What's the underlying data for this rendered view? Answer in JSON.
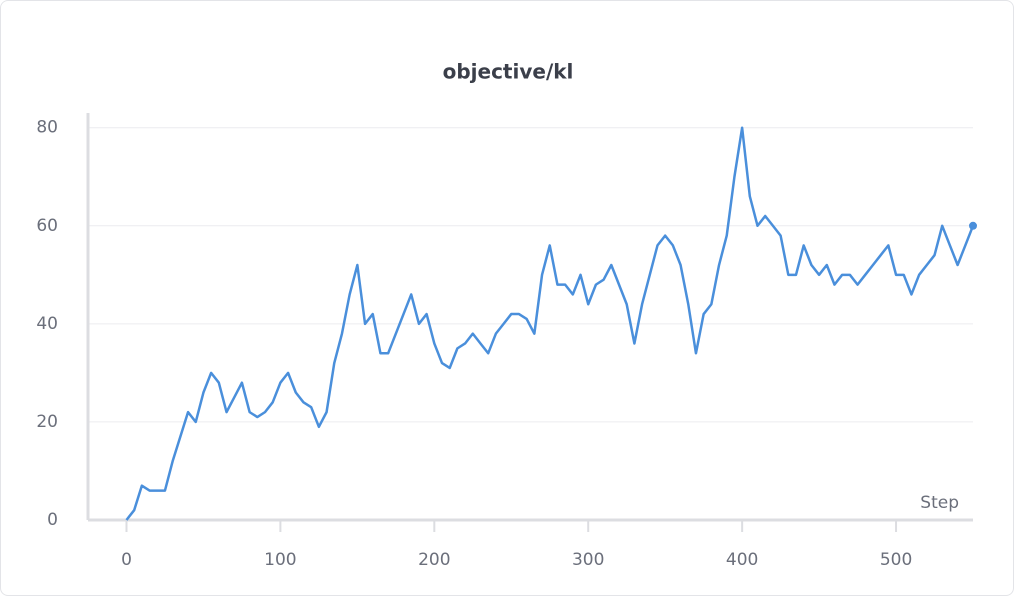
{
  "chart_data": {
    "type": "line",
    "title": "objective/kl",
    "x_label": "Step",
    "x": [
      0,
      5,
      10,
      15,
      20,
      25,
      30,
      35,
      40,
      45,
      50,
      55,
      60,
      65,
      70,
      75,
      80,
      85,
      90,
      95,
      100,
      105,
      110,
      115,
      120,
      125,
      130,
      135,
      140,
      145,
      150,
      155,
      160,
      165,
      170,
      175,
      180,
      185,
      190,
      195,
      200,
      205,
      210,
      215,
      220,
      225,
      230,
      235,
      240,
      245,
      250,
      255,
      260,
      265,
      270,
      275,
      280,
      285,
      290,
      295,
      300,
      305,
      310,
      315,
      320,
      325,
      330,
      335,
      340,
      345,
      350,
      355,
      360,
      365,
      370,
      375,
      380,
      385,
      390,
      395,
      400,
      405,
      410,
      415,
      420,
      425,
      430,
      435,
      440,
      445,
      450,
      455,
      460,
      465,
      470,
      475,
      480,
      485,
      490,
      495,
      500,
      505,
      510,
      515,
      520,
      525,
      530,
      535,
      540,
      545,
      550
    ],
    "values": [
      0,
      2,
      7,
      6,
      6,
      6,
      12,
      17,
      22,
      20,
      26,
      30,
      28,
      22,
      25,
      28,
      22,
      21,
      22,
      24,
      28,
      30,
      26,
      24,
      23,
      19,
      22,
      32,
      38,
      46,
      52,
      40,
      42,
      34,
      34,
      38,
      42,
      46,
      40,
      42,
      36,
      32,
      31,
      35,
      36,
      38,
      36,
      34,
      38,
      40,
      42,
      42,
      41,
      38,
      50,
      56,
      48,
      48,
      46,
      50,
      44,
      48,
      49,
      52,
      48,
      44,
      36,
      44,
      50,
      56,
      58,
      56,
      52,
      44,
      34,
      42,
      44,
      52,
      58,
      70,
      80,
      66,
      60,
      62,
      60,
      58,
      50,
      50,
      56,
      52,
      50,
      52,
      48,
      50,
      50,
      48,
      50,
      52,
      54,
      56,
      50,
      50,
      46,
      50,
      52,
      54,
      60,
      56,
      52,
      56,
      60
    ],
    "color": "#4a8fdb",
    "xlim": [
      -25,
      550
    ],
    "ylim": [
      0,
      83
    ],
    "xticks": [
      0,
      100,
      200,
      300,
      400,
      500
    ],
    "yticks": [
      0,
      20,
      40,
      60,
      80
    ],
    "grid": true
  }
}
